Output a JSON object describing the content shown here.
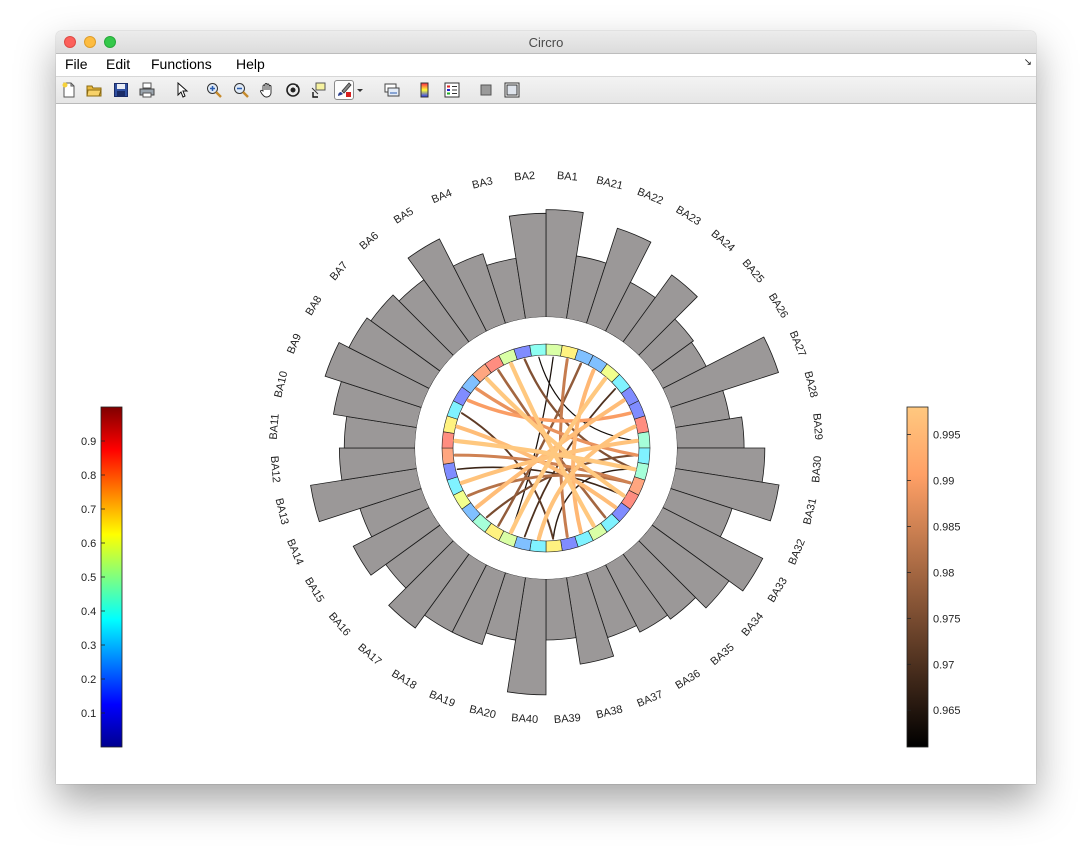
{
  "window": {
    "title": "Circro"
  },
  "menu": {
    "items": [
      "File",
      "Edit",
      "Functions",
      "Help"
    ],
    "dock_arrow": "↘"
  },
  "toolbar": {
    "buttons": [
      {
        "name": "new-file-icon"
      },
      {
        "name": "open-folder-icon"
      },
      {
        "name": "save-icon"
      },
      {
        "name": "print-icon"
      },
      {
        "name": "pointer-icon"
      },
      {
        "name": "zoom-in-icon"
      },
      {
        "name": "zoom-out-icon"
      },
      {
        "name": "pan-hand-icon"
      },
      {
        "name": "rotate-3d-icon"
      },
      {
        "name": "data-cursor-icon"
      },
      {
        "name": "brush-icon"
      },
      {
        "name": "link-plot-icon"
      },
      {
        "name": "colorbar-icon"
      },
      {
        "name": "legend-icon"
      },
      {
        "name": "hide-plot-tools-icon"
      },
      {
        "name": "show-plot-tools-icon"
      }
    ]
  },
  "chart_data": {
    "type": "circular",
    "labels": [
      "BA1",
      "BA21",
      "BA22",
      "BA23",
      "BA24",
      "BA25",
      "BA26",
      "BA27",
      "BA28",
      "BA29",
      "BA30",
      "BA31",
      "BA32",
      "BA33",
      "BA34",
      "BA35",
      "BA36",
      "BA37",
      "BA38",
      "BA39",
      "BA40",
      "BA20",
      "BA19",
      "BA18",
      "BA17",
      "BA16",
      "BA15",
      "BA14",
      "BA13",
      "BA12",
      "BA11",
      "BA10",
      "BA9",
      "BA8",
      "BA7",
      "BA6",
      "BA5",
      "BA4",
      "BA3",
      "BA2"
    ],
    "bar_values": [
      0.88,
      0.52,
      0.82,
      0.45,
      0.68,
      0.42,
      0.4,
      0.93,
      0.45,
      0.55,
      0.72,
      0.86,
      0.53,
      0.92,
      0.78,
      0.66,
      0.62,
      0.56,
      0.72,
      0.5,
      0.95,
      0.52,
      0.62,
      0.62,
      0.75,
      0.55,
      0.7,
      0.53,
      0.88,
      0.62,
      0.58,
      0.69,
      0.83,
      0.74,
      0.7,
      0.63,
      0.85,
      0.6,
      0.5,
      0.85
    ],
    "node_color_values": [
      0.55,
      0.65,
      0.25,
      0.25,
      0.6,
      0.35,
      0.15,
      0.15,
      0.85,
      0.45,
      0.35,
      0.45,
      0.8,
      0.85,
      0.15,
      0.35,
      0.55,
      0.35,
      0.15,
      0.65,
      0.35,
      0.25,
      0.55,
      0.65,
      0.45,
      0.25,
      0.6,
      0.35,
      0.15,
      0.8,
      0.85,
      0.65,
      0.35,
      0.15,
      0.25,
      0.8,
      0.85,
      0.55,
      0.15,
      0.4
    ],
    "links": [
      {
        "a": 37,
        "b": 16,
        "w": 0.998
      },
      {
        "a": 35,
        "b": 13,
        "w": 0.998
      },
      {
        "a": 30,
        "b": 11,
        "w": 0.998
      },
      {
        "a": 27,
        "b": 9,
        "w": 0.997
      },
      {
        "a": 25,
        "b": 6,
        "w": 0.996
      },
      {
        "a": 22,
        "b": 4,
        "w": 0.998
      },
      {
        "a": 20,
        "b": 8,
        "w": 0.997
      },
      {
        "a": 31,
        "b": 14,
        "w": 0.996
      },
      {
        "a": 3,
        "b": 17,
        "w": 0.995
      },
      {
        "a": 33,
        "b": 7,
        "w": 0.99
      },
      {
        "a": 29,
        "b": 12,
        "w": 0.985
      },
      {
        "a": 34,
        "b": 10,
        "w": 0.988
      },
      {
        "a": 18,
        "b": 1,
        "w": 0.984
      },
      {
        "a": 26,
        "b": 12,
        "w": 0.982
      },
      {
        "a": 36,
        "b": 15,
        "w": 0.98
      },
      {
        "a": 2,
        "b": 23,
        "w": 0.978
      },
      {
        "a": 38,
        "b": 11,
        "w": 0.976
      },
      {
        "a": 24,
        "b": 10,
        "w": 0.975
      },
      {
        "a": 32,
        "b": 19,
        "w": 0.972
      },
      {
        "a": 21,
        "b": 5,
        "w": 0.97
      },
      {
        "a": 28,
        "b": 13,
        "w": 0.968
      },
      {
        "a": 0,
        "b": 22,
        "w": 0.964
      },
      {
        "a": 39,
        "b": 9,
        "w": 0.963
      },
      {
        "a": 19,
        "b": 11,
        "w": 0.966
      }
    ],
    "left_colorbar": {
      "ticks": [
        "0.1",
        "0.2",
        "0.3",
        "0.4",
        "0.5",
        "0.6",
        "0.7",
        "0.8",
        "0.9"
      ],
      "values": [
        0.1,
        0.2,
        0.3,
        0.4,
        0.5,
        0.6,
        0.7,
        0.8,
        0.9
      ],
      "range": [
        0,
        1
      ],
      "colormap": "jet"
    },
    "right_colorbar": {
      "ticks": [
        "0.965",
        "0.97",
        "0.975",
        "0.98",
        "0.985",
        "0.99",
        "0.995"
      ],
      "values": [
        0.965,
        0.97,
        0.975,
        0.98,
        0.985,
        0.99,
        0.995
      ],
      "range": [
        0.961,
        0.998
      ],
      "colormap": "copper"
    },
    "colors": {
      "bar_fill": "#9b9898",
      "bar_stroke": "#1a1a1a",
      "link_hi": "#ffc080",
      "link_lo": "#000000"
    }
  }
}
